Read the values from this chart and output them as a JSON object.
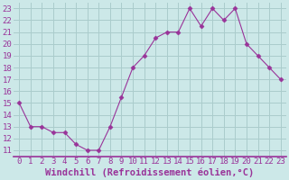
{
  "x": [
    0,
    1,
    2,
    3,
    4,
    5,
    6,
    7,
    8,
    9,
    10,
    11,
    12,
    13,
    14,
    15,
    16,
    17,
    18,
    19,
    20,
    21,
    22,
    23
  ],
  "y": [
    15,
    13,
    13,
    12.5,
    12.5,
    11.5,
    11,
    11,
    13,
    15.5,
    18,
    19,
    20.5,
    21,
    21,
    23,
    21.5,
    23,
    22,
    23,
    20,
    19,
    18,
    17
  ],
  "line_color": "#993399",
  "marker": "D",
  "marker_size": 2.5,
  "bg_color": "#cce8e8",
  "grid_color": "#aacccc",
  "xlabel": "Windchill (Refroidissement éolien,°C)",
  "label_color": "#993399",
  "ylabel_ticks": [
    11,
    12,
    13,
    14,
    15,
    16,
    17,
    18,
    19,
    20,
    21,
    22,
    23
  ],
  "xtick_labels": [
    "0",
    "1",
    "2",
    "3",
    "4",
    "5",
    "6",
    "7",
    "8",
    "9",
    "10",
    "11",
    "12",
    "13",
    "14",
    "15",
    "16",
    "17",
    "18",
    "19",
    "20",
    "21",
    "22",
    "23"
  ],
  "ylim": [
    10.5,
    23.5
  ],
  "xlim": [
    -0.5,
    23.5
  ],
  "tick_fontsize": 6.5,
  "xlabel_fontsize": 7.5,
  "axis_line_color": "#993399"
}
